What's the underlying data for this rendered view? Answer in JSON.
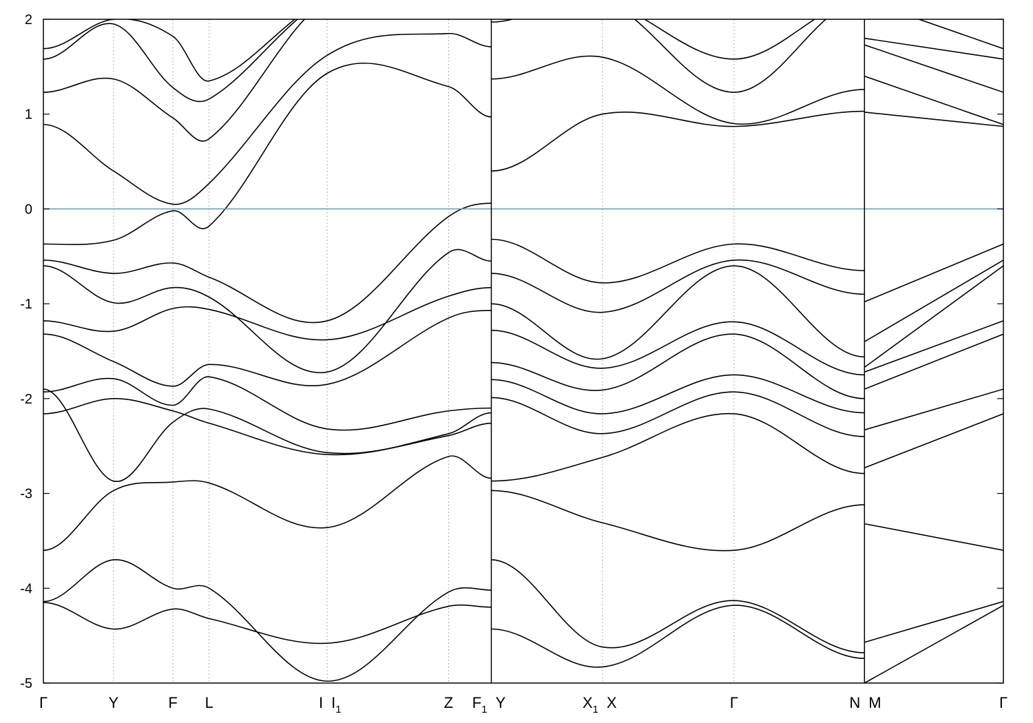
{
  "chart_data": {
    "type": "line",
    "title": "",
    "xlabel": "",
    "ylabel": "",
    "ylim": [
      -5,
      2
    ],
    "yticks": [
      2,
      1,
      0,
      -1,
      -2,
      -3,
      -4,
      -5
    ],
    "fermi_level": 0,
    "colors": {
      "bands": "#000000",
      "fermi": "#4aa8c0",
      "gridline": "#999999"
    },
    "kpoints": [
      {
        "id": "k-gamma1",
        "label": "Γ",
        "sub": "",
        "x": 0
      },
      {
        "id": "k-y1",
        "label": "Y",
        "sub": "",
        "x": 0.0731
      },
      {
        "id": "k-f",
        "label": "F",
        "sub": "",
        "x": 0.1349
      },
      {
        "id": "k-l",
        "label": "L",
        "sub": "",
        "x": 0.1727
      },
      {
        "id": "k-i",
        "label": "I",
        "sub": "",
        "x": 0.2956
      },
      {
        "id": "k-i1",
        "label": "I",
        "sub": "1",
        "x": 0.2956
      },
      {
        "id": "k-z",
        "label": "Z",
        "sub": "",
        "x": 0.4221
      },
      {
        "id": "k-f1",
        "label": "F",
        "sub": "1",
        "x": 0.4666
      },
      {
        "id": "k-y2",
        "label": "Y",
        "sub": "",
        "x": 0.4666
      },
      {
        "id": "k-x1",
        "label": "X",
        "sub": "1",
        "x": 0.5824
      },
      {
        "id": "k-x",
        "label": "X",
        "sub": "",
        "x": 0.5824
      },
      {
        "id": "k-gamma2",
        "label": "Γ",
        "sub": "",
        "x": 0.7194
      },
      {
        "id": "k-n",
        "label": "N",
        "sub": "",
        "x": 0.8553
      },
      {
        "id": "k-m",
        "label": "M",
        "sub": "",
        "x": 0.8553
      },
      {
        "id": "k-gamma3",
        "label": "Γ",
        "sub": "",
        "x": 1
      }
    ],
    "segments": [
      {
        "x": [
          0,
          0.0731,
          0.1349,
          0.1727,
          0.2956,
          0.4221,
          0.4666
        ],
        "bands": [
          [
            -4.15,
            -4.43,
            -4.22,
            -4.32,
            -4.58,
            -4.19,
            -4.2
          ],
          [
            -4.14,
            -3.7,
            -4.0,
            -4.0,
            -4.98,
            -4.04,
            -4.02
          ],
          [
            -3.6,
            -2.97,
            -2.88,
            -2.89,
            -3.36,
            -2.61,
            -2.84
          ],
          [
            -2.16,
            -2.0,
            -2.13,
            -2.26,
            -2.59,
            -2.39,
            -2.26
          ],
          [
            -1.9,
            -2.87,
            -2.25,
            -2.11,
            -2.57,
            -2.37,
            -2.15
          ],
          [
            -1.93,
            -1.79,
            -2.07,
            -1.77,
            -2.32,
            -2.13,
            -2.1
          ],
          [
            -1.32,
            -1.61,
            -1.87,
            -1.64,
            -1.85,
            -1.15,
            -1.07
          ],
          [
            -1.18,
            -1.29,
            -1.05,
            -1.06,
            -1.38,
            -0.92,
            -0.83
          ],
          [
            -0.6,
            -0.99,
            -0.83,
            -0.93,
            -1.72,
            -0.46,
            -0.55
          ],
          [
            -0.54,
            -0.68,
            -0.57,
            -0.72,
            -1.18,
            -0.08,
            0.06
          ],
          [
            -0.37,
            -0.33,
            -0.02,
            -0.18,
            1.43,
            1.29,
            0.97
          ],
          [
            0.89,
            0.4,
            0.05,
            0.27,
            1.62,
            1.85,
            1.71
          ],
          [
            1.23,
            1.37,
            0.96,
            0.74,
            2.2,
            2.2,
            2.2
          ],
          [
            1.58,
            1.95,
            1.28,
            1.16,
            2.2,
            2.2,
            2.2
          ],
          [
            1.69,
            2.0,
            1.82,
            1.35,
            2.2,
            2.2,
            2.2
          ]
        ]
      },
      {
        "x": [
          0.4666,
          0.5824,
          0.7194,
          0.8553
        ],
        "bands": [
          [
            -4.43,
            -4.83,
            -4.18,
            -4.74
          ],
          [
            -3.7,
            -4.62,
            -4.13,
            -4.68
          ],
          [
            -2.97,
            -3.31,
            -3.6,
            -3.12
          ],
          [
            -2.87,
            -2.62,
            -2.16,
            -2.79
          ],
          [
            -1.99,
            -2.37,
            -1.93,
            -2.4
          ],
          [
            -1.8,
            -2.16,
            -1.75,
            -2.15
          ],
          [
            -1.62,
            -1.91,
            -1.32,
            -2.0
          ],
          [
            -1.28,
            -1.68,
            -1.19,
            -1.75
          ],
          [
            -1.0,
            -1.58,
            -0.6,
            -1.56
          ],
          [
            -0.68,
            -1.09,
            -0.54,
            -0.9
          ],
          [
            -0.32,
            -0.78,
            -0.37,
            -0.65
          ],
          [
            0.4,
            1.0,
            0.87,
            1.03
          ],
          [
            1.37,
            1.6,
            0.9,
            1.26
          ],
          [
            1.97,
            2.2,
            1.23,
            2.2
          ],
          [
            2.2,
            2.2,
            1.58,
            2.2
          ]
        ]
      },
      {
        "x": [
          0.8553,
          1
        ],
        "bands": [
          [
            -5.0,
            -4.18
          ],
          [
            -4.57,
            -4.14
          ],
          [
            -3.32,
            -3.6
          ],
          [
            -2.73,
            -2.16
          ],
          [
            -2.33,
            -1.9
          ],
          [
            -1.9,
            -1.32
          ],
          [
            -1.72,
            -1.18
          ],
          [
            -1.67,
            -0.6
          ],
          [
            -1.4,
            -0.54
          ],
          [
            -0.98,
            -0.37
          ],
          [
            1.02,
            0.87
          ],
          [
            1.4,
            0.89
          ],
          [
            1.73,
            1.23
          ],
          [
            1.8,
            1.58
          ],
          [
            2.2,
            1.69
          ]
        ]
      }
    ]
  }
}
